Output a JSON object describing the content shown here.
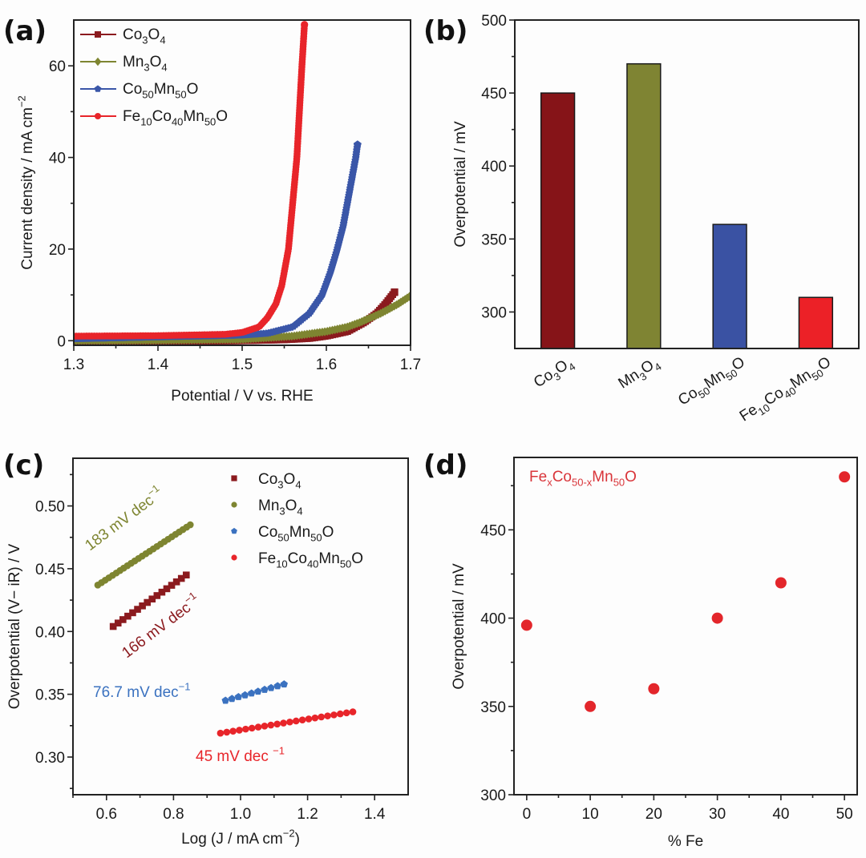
{
  "figure": {
    "panels": [
      "(a)",
      "(b)",
      "(c)",
      "(d)"
    ]
  },
  "colors": {
    "co3o4": "#8B1A1E",
    "mn3o4": "#7E8531",
    "co50mn50o": "#3A56A8",
    "fe10co40mn50o": "#E8252A",
    "co3o4_bar": "#861418",
    "mn3o4_bar": "#7F8433",
    "co50mn50o_bar": "#3A52A3",
    "fe10co40mn50o_bar": "#EC2127",
    "c_co50mn50o": "#3B72C0",
    "d_points": "#E3262B",
    "d_annotation": "#D9353A"
  },
  "formulas": {
    "co3o4": [
      [
        "Co",
        ""
      ],
      [
        "3",
        "sub"
      ],
      [
        "O",
        ""
      ],
      [
        "4",
        "sub"
      ]
    ],
    "mn3o4": [
      [
        "Mn",
        ""
      ],
      [
        "3",
        "sub"
      ],
      [
        "O",
        ""
      ],
      [
        "4",
        "sub"
      ]
    ],
    "co50mn50o": [
      [
        "Co",
        ""
      ],
      [
        "50",
        "sub"
      ],
      [
        "Mn",
        ""
      ],
      [
        "50",
        "sub"
      ],
      [
        "O",
        ""
      ]
    ],
    "fe10co40mn50o": [
      [
        "Fe",
        ""
      ],
      [
        "10",
        "sub"
      ],
      [
        "Co",
        ""
      ],
      [
        "40",
        "sub"
      ],
      [
        "Mn",
        ""
      ],
      [
        "50",
        "sub"
      ],
      [
        "O",
        ""
      ]
    ],
    "fexco": [
      [
        "Fe",
        ""
      ],
      [
        "x",
        "sub"
      ],
      [
        "Co",
        ""
      ],
      [
        "50-x",
        "sub"
      ],
      [
        "Mn",
        ""
      ],
      [
        "50",
        "sub"
      ],
      [
        "O",
        ""
      ]
    ]
  },
  "chart_data": [
    {
      "id": "a",
      "type": "line",
      "panel_label": "(a)",
      "title": "",
      "xlabel": "Potential / V vs. RHE",
      "ylabel": [
        [
          "Current density / mA cm",
          ""
        ],
        [
          "−2",
          "sup"
        ]
      ],
      "xlim": [
        1.3,
        1.7
      ],
      "ylim": [
        -1,
        70
      ],
      "xticks": [
        1.3,
        1.4,
        1.5,
        1.6,
        1.7
      ],
      "xtick_labels": [
        "1.3",
        "1.4",
        "1.5",
        "1.6",
        "1.7"
      ],
      "xminor": [
        1.35,
        1.45,
        1.55,
        1.65
      ],
      "yticks": [
        0,
        20,
        40,
        60
      ],
      "ytick_labels": [
        "0",
        "20",
        "40",
        "60"
      ],
      "yminor": [
        10,
        30,
        50
      ],
      "grid": false,
      "legend": "top-left",
      "series": [
        {
          "name": "Co3O4",
          "formula": "co3o4",
          "color_key": "co3o4",
          "marker": "square",
          "points": [
            [
              1.3,
              -0.2
            ],
            [
              1.4,
              -0.2
            ],
            [
              1.5,
              0.0
            ],
            [
              1.55,
              0.2
            ],
            [
              1.58,
              0.5
            ],
            [
              1.6,
              1.0
            ],
            [
              1.625,
              2.0
            ],
            [
              1.645,
              4.0
            ],
            [
              1.66,
              6.0
            ],
            [
              1.67,
              8.0
            ],
            [
              1.681,
              10.6
            ]
          ]
        },
        {
          "name": "Mn3O4",
          "formula": "mn3o4",
          "color_key": "mn3o4",
          "marker": "diamond",
          "points": [
            [
              1.3,
              0.0
            ],
            [
              1.4,
              0.1
            ],
            [
              1.5,
              0.3
            ],
            [
              1.56,
              1.0
            ],
            [
              1.6,
              2.0
            ],
            [
              1.625,
              3.0
            ],
            [
              1.64,
              4.0
            ],
            [
              1.665,
              6.0
            ],
            [
              1.685,
              8.0
            ],
            [
              1.7,
              9.8
            ]
          ]
        },
        {
          "name": "Co50Mn50O",
          "formula": "co50mn50o",
          "color_key": "co50mn50o",
          "marker": "pentagon",
          "points": [
            [
              1.3,
              0.4
            ],
            [
              1.4,
              0.8
            ],
            [
              1.45,
              1.0
            ],
            [
              1.5,
              1.2
            ],
            [
              1.53,
              1.6
            ],
            [
              1.56,
              3.0
            ],
            [
              1.58,
              6.0
            ],
            [
              1.595,
              10.0
            ],
            [
              1.605,
              15.0
            ],
            [
              1.613,
              20.0
            ],
            [
              1.62,
              25.0
            ],
            [
              1.625,
              30.0
            ],
            [
              1.63,
              35.0
            ],
            [
              1.635,
              40.0
            ],
            [
              1.637,
              42.8
            ]
          ]
        },
        {
          "name": "Fe10Co40Mn50O",
          "formula": "fe10co40mn50o",
          "color_key": "fe10co40mn50o",
          "marker": "circle",
          "points": [
            [
              1.3,
              1.0
            ],
            [
              1.4,
              1.1
            ],
            [
              1.48,
              1.4
            ],
            [
              1.5,
              1.8
            ],
            [
              1.52,
              3.0
            ],
            [
              1.53,
              5.0
            ],
            [
              1.54,
              8.0
            ],
            [
              1.547,
              12.0
            ],
            [
              1.555,
              20.0
            ],
            [
              1.56,
              30.0
            ],
            [
              1.565,
              40.0
            ],
            [
              1.568,
              50.0
            ],
            [
              1.571,
              60.0
            ],
            [
              1.574,
              69.0
            ]
          ]
        }
      ]
    },
    {
      "id": "b",
      "type": "bar",
      "panel_label": "(b)",
      "title": "",
      "xlabel": "",
      "ylabel": "Overpotential / mV",
      "categories": [
        "Co3O4",
        "Mn3O4",
        "Co50Mn50O",
        "Fe10Co40Mn50O"
      ],
      "category_formulas": [
        "co3o4",
        "mn3o4",
        "co50mn50o",
        "fe10co40mn50o"
      ],
      "values": [
        450,
        470,
        360,
        310
      ],
      "bar_color_keys": [
        "co3o4_bar",
        "mn3o4_bar",
        "co50mn50o_bar",
        "fe10co40mn50o_bar"
      ],
      "ylim": [
        275,
        500
      ],
      "yticks": [
        300,
        350,
        400,
        450,
        500
      ],
      "ytick_labels": [
        "300",
        "350",
        "400",
        "450",
        "500"
      ],
      "yminor": [
        325,
        375,
        425,
        475
      ],
      "grid": false,
      "legend": "none"
    },
    {
      "id": "c",
      "type": "scatter",
      "panel_label": "(c)",
      "title": "",
      "xlabel": [
        [
          "Log (J / mA cm",
          ""
        ],
        [
          "−2",
          "sup"
        ],
        [
          ")",
          ""
        ]
      ],
      "ylabel": "Overpotential (V− iR) / V",
      "xlim": [
        0.5,
        1.5
      ],
      "ylim": [
        0.27,
        0.538
      ],
      "xticks": [
        0.6,
        0.8,
        1.0,
        1.2,
        1.4
      ],
      "xtick_labels": [
        "0.6",
        "0.8",
        "1.0",
        "1.2",
        "1.4"
      ],
      "xminor": [
        0.5,
        0.7,
        0.9,
        1.1,
        1.3
      ],
      "yticks": [
        0.3,
        0.35,
        0.4,
        0.45,
        0.5
      ],
      "ytick_labels": [
        "0.30",
        "0.35",
        "0.40",
        "0.45",
        "0.50"
      ],
      "yminor": [
        0.275,
        0.325,
        0.375,
        0.425,
        0.475,
        0.525
      ],
      "grid": false,
      "legend": "top-right",
      "series": [
        {
          "name": "Co3O4",
          "formula": "co3o4",
          "color_key": "co3o4",
          "marker": "square",
          "start": [
            0.62,
            0.404
          ],
          "end": [
            0.838,
            0.445
          ],
          "count": 16,
          "slope_label": "166 mV dec",
          "slope_sup": "−1"
        },
        {
          "name": "Mn3O4",
          "formula": "mn3o4",
          "color_key": "mn3o4",
          "marker": "circle",
          "start": [
            0.574,
            0.437
          ],
          "end": [
            0.85,
            0.485
          ],
          "count": 26,
          "slope_label": "183 mV dec",
          "slope_sup": "−1"
        },
        {
          "name": "Co50Mn50O",
          "formula": "co50mn50o",
          "color_key": "c_co50mn50o",
          "marker": "pentagon",
          "start": [
            0.955,
            0.345
          ],
          "end": [
            1.13,
            0.358
          ],
          "count": 10,
          "slope_label": "76.7 mV dec",
          "slope_sup": "−1"
        },
        {
          "name": "Fe10Co40Mn50O",
          "formula": "fe10co40mn50o",
          "color_key": "fe10co40mn50o",
          "marker": "circle",
          "start": [
            0.94,
            0.319
          ],
          "end": [
            1.335,
            0.336
          ],
          "count": 22,
          "slope_label": "45 mV dec ",
          "slope_sup": "−1"
        }
      ]
    },
    {
      "id": "d",
      "type": "scatter",
      "panel_label": "(d)",
      "title": "",
      "xlabel": "% Fe",
      "ylabel": "Overpotential / mV",
      "annotation_formula": "fexco",
      "x": [
        0,
        10,
        20,
        30,
        40,
        50
      ],
      "y": [
        396,
        350,
        360,
        400,
        420,
        480
      ],
      "xlim": [
        -2,
        52
      ],
      "ylim": [
        300,
        491
      ],
      "xticks": [
        0,
        10,
        20,
        30,
        40,
        50
      ],
      "xtick_labels": [
        "0",
        "10",
        "20",
        "30",
        "40",
        "50"
      ],
      "xminor": [
        5,
        15,
        25,
        35,
        45
      ],
      "yticks": [
        300,
        350,
        400,
        450
      ],
      "ytick_labels": [
        "300",
        "350",
        "400",
        "450"
      ],
      "yminor": [
        325,
        375,
        425,
        475
      ],
      "grid": false,
      "legend": "none"
    }
  ]
}
